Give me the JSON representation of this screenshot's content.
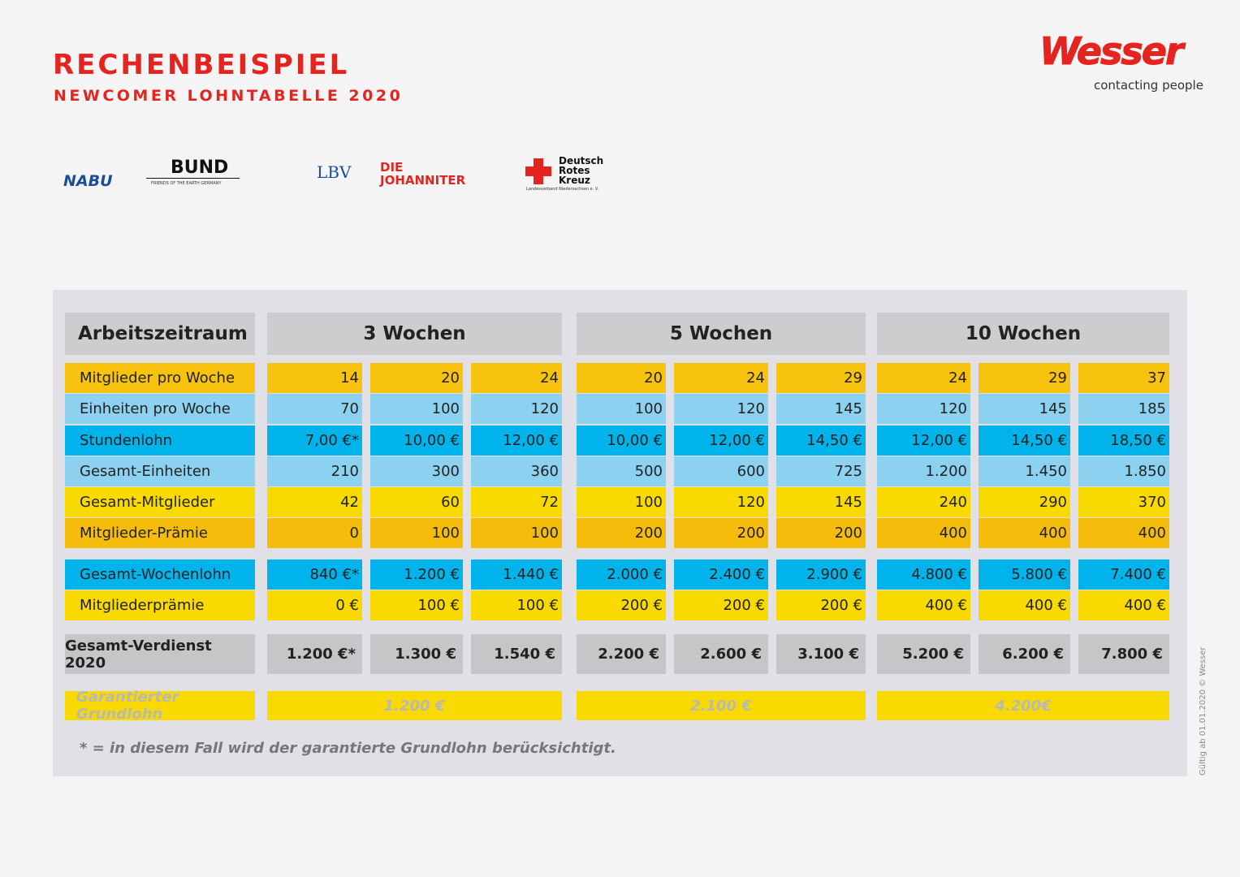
{
  "header": {
    "title": "RECHENBEISPIEL",
    "subtitle": "NEWCOMER LOHNTABELLE 2020",
    "logo": "Wesser",
    "tagline": "contacting people"
  },
  "partners": [
    {
      "name": "NABU"
    },
    {
      "name": "BUND",
      "sub": "FRIENDS OF THE EARTH GERMANY"
    },
    {
      "name": "LBV"
    },
    {
      "name": "DIE JOHANNITER"
    },
    {
      "name": "Deutsch Rotes Kreuz",
      "sub": "Landesverband Niedersachsen e. V."
    }
  ],
  "table": {
    "header_label": "Arbeitszeitraum",
    "groups": [
      "3 Wochen",
      "5 Wochen",
      "10 Wochen"
    ],
    "rows": [
      {
        "label": "Mitglieder pro Woche",
        "values": [
          "14",
          "20",
          "24",
          "20",
          "24",
          "29",
          "24",
          "29",
          "37"
        ]
      },
      {
        "label": "Einheiten pro Woche",
        "values": [
          "70",
          "100",
          "120",
          "100",
          "120",
          "145",
          "120",
          "145",
          "185"
        ]
      },
      {
        "label": "Stundenlohn",
        "values": [
          "7,00 €*",
          "10,00 €",
          "12,00 €",
          "10,00 €",
          "12,00 €",
          "14,50 €",
          "12,00 €",
          "14,50 €",
          "18,50 €"
        ]
      },
      {
        "label": "Gesamt-Einheiten",
        "values": [
          "210",
          "300",
          "360",
          "500",
          "600",
          "725",
          "1.200",
          "1.450",
          "1.850"
        ]
      },
      {
        "label": "Gesamt-Mitglieder",
        "values": [
          "42",
          "60",
          "72",
          "100",
          "120",
          "145",
          "240",
          "290",
          "370"
        ]
      },
      {
        "label": "Mitglieder-Prämie",
        "values": [
          "0",
          "100",
          "100",
          "200",
          "200",
          "200",
          "400",
          "400",
          "400"
        ]
      }
    ],
    "pay_rows": [
      {
        "label": "Gesamt-Wochenlohn",
        "values": [
          "840 €*",
          "1.200 €",
          "1.440 €",
          "2.000 €",
          "2.400 €",
          "2.900 €",
          "4.800 €",
          "5.800 €",
          "7.400 €"
        ]
      },
      {
        "label": "Mitgliederprämie",
        "values": [
          "0 €",
          "100 €",
          "100 €",
          "200 €",
          "200 €",
          "200 €",
          "400 €",
          "400 €",
          "400 €"
        ]
      }
    ],
    "total": {
      "label": "Gesamt-Verdienst 2020",
      "values": [
        "1.200 €*",
        "1.300 €",
        "1.540 €",
        "2.200 €",
        "2.600 €",
        "3.100 €",
        "5.200 €",
        "6.200 €",
        "7.800 €"
      ]
    },
    "guaranteed": {
      "label": "Garantierter Grundlohn",
      "values": [
        "1.200 €",
        "2.100 €",
        "4.200€"
      ]
    },
    "footnote": "* = in diesem Fall wird der garantierte Grundlohn berücksichtigt."
  },
  "validity": "Gültig ab 01.01.2020 © Wesser"
}
